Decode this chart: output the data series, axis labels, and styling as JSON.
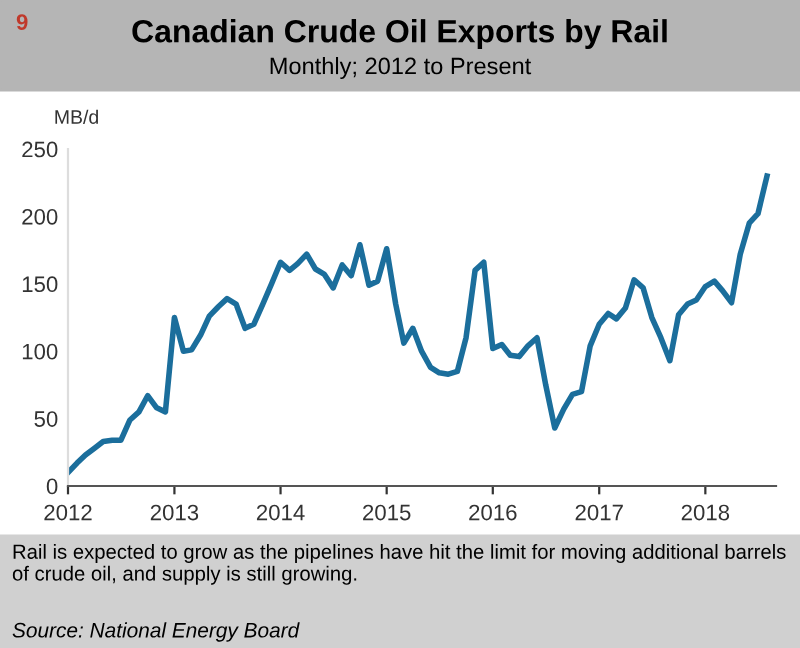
{
  "chart_data": {
    "type": "line",
    "title": "Canadian Crude Oil Exports by Rail",
    "subtitle": "Monthly; 2012 to Present",
    "ylabel": "MB/d",
    "x": [
      "2012-01",
      "2012-02",
      "2012-03",
      "2012-04",
      "2012-05",
      "2012-06",
      "2012-07",
      "2012-08",
      "2012-09",
      "2012-10",
      "2012-11",
      "2012-12",
      "2013-01",
      "2013-02",
      "2013-03",
      "2013-04",
      "2013-05",
      "2013-06",
      "2013-07",
      "2013-08",
      "2013-09",
      "2013-10",
      "2013-11",
      "2013-12",
      "2014-01",
      "2014-02",
      "2014-03",
      "2014-04",
      "2014-05",
      "2014-06",
      "2014-07",
      "2014-08",
      "2014-09",
      "2014-10",
      "2014-11",
      "2014-12",
      "2015-01",
      "2015-02",
      "2015-03",
      "2015-04",
      "2015-05",
      "2015-06",
      "2015-07",
      "2015-08",
      "2015-09",
      "2015-10",
      "2015-11",
      "2015-12",
      "2016-01",
      "2016-02",
      "2016-03",
      "2016-04",
      "2016-05",
      "2016-06",
      "2016-07",
      "2016-08",
      "2016-09",
      "2016-10",
      "2016-11",
      "2016-12",
      "2017-01",
      "2017-02",
      "2017-03",
      "2017-04",
      "2017-05",
      "2017-06",
      "2017-07",
      "2017-08",
      "2017-09",
      "2017-10",
      "2017-11",
      "2017-12",
      "2018-01",
      "2018-02",
      "2018-03",
      "2018-04",
      "2018-05",
      "2018-06",
      "2018-07",
      "2018-08"
    ],
    "series": [
      {
        "color": "#1b6e9c",
        "values": [
          10,
          17,
          23,
          28,
          33,
          34,
          34,
          49,
          55,
          67,
          58,
          55,
          125,
          100,
          101,
          112,
          126,
          133,
          139,
          135,
          117,
          120,
          135,
          150,
          166,
          160,
          165,
          172,
          161,
          157,
          147,
          164,
          156,
          179,
          149,
          152,
          176,
          135,
          106,
          117,
          100,
          88,
          84,
          83,
          85,
          110,
          160,
          166,
          102,
          105,
          97,
          96,
          104,
          110,
          75,
          43,
          57,
          68,
          70,
          104,
          120,
          128,
          124,
          132,
          153,
          147,
          125,
          110,
          93,
          127,
          135,
          138,
          148,
          152,
          145,
          136,
          172,
          195,
          202,
          230
        ]
      }
    ],
    "xlim": [
      "2012-01",
      "2018-09"
    ],
    "xticks": [
      {
        "value": "2012",
        "label": "2012"
      },
      {
        "value": "2013",
        "label": "2013"
      },
      {
        "value": "2014",
        "label": "2014"
      },
      {
        "value": "2015",
        "label": "2015"
      },
      {
        "value": "2016",
        "label": "2016"
      },
      {
        "value": "2017",
        "label": "2017"
      },
      {
        "value": "2018",
        "label": "2018"
      }
    ],
    "ylim": [
      0,
      250
    ],
    "yticks": [
      0,
      50,
      100,
      150,
      200,
      250
    ],
    "grid": false,
    "line_style": "solid",
    "marker": "none",
    "annotations": [
      "9",
      "Rail is expected to grow as the pipelines have hit the limit for moving additional barrels of crude oil, and supply is still growing.",
      "Source: National Energy Board"
    ]
  }
}
